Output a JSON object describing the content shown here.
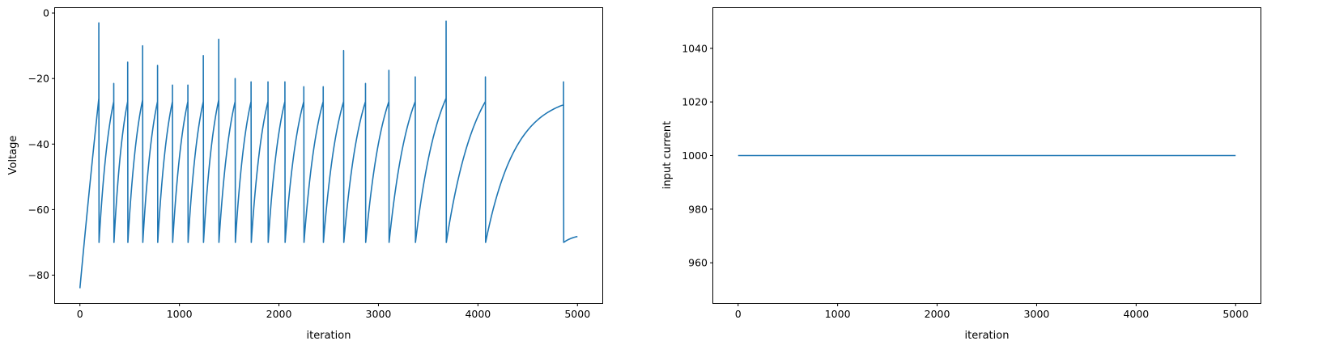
{
  "colors": {
    "series": "#1f77b4",
    "axes": "#000000",
    "background": "#ffffff"
  },
  "chart_data": [
    {
      "type": "line",
      "title": "",
      "xlabel": "iteration",
      "ylabel": "Voltage",
      "xlim": [
        -250,
        5250
      ],
      "ylim": [
        -88.5,
        1.5
      ],
      "xticks": [
        0,
        1000,
        2000,
        3000,
        4000,
        5000
      ],
      "yticks": [
        -80,
        -60,
        -40,
        -20,
        0
      ],
      "grid": false,
      "reset_voltage": -70,
      "start": {
        "x": 0,
        "y": -84
      },
      "spikes": [
        {
          "x": 190,
          "peak": -3,
          "threshold": -26
        },
        {
          "x": 340,
          "peak": -21.5,
          "threshold": -27
        },
        {
          "x": 480,
          "peak": -15,
          "threshold": -27
        },
        {
          "x": 630,
          "peak": -10,
          "threshold": -26.5
        },
        {
          "x": 780,
          "peak": -16,
          "threshold": -27
        },
        {
          "x": 930,
          "peak": -22,
          "threshold": -27
        },
        {
          "x": 1085,
          "peak": -22,
          "threshold": -27
        },
        {
          "x": 1240,
          "peak": -13,
          "threshold": -27
        },
        {
          "x": 1395,
          "peak": -8,
          "threshold": -26.5
        },
        {
          "x": 1560,
          "peak": -20,
          "threshold": -27
        },
        {
          "x": 1720,
          "peak": -21,
          "threshold": -27
        },
        {
          "x": 1890,
          "peak": -21,
          "threshold": -27
        },
        {
          "x": 2060,
          "peak": -21,
          "threshold": -27
        },
        {
          "x": 2250,
          "peak": -22.5,
          "threshold": -27
        },
        {
          "x": 2445,
          "peak": -22.5,
          "threshold": -27
        },
        {
          "x": 2650,
          "peak": -11.5,
          "threshold": -27
        },
        {
          "x": 2870,
          "peak": -21.5,
          "threshold": -27
        },
        {
          "x": 3105,
          "peak": -17.5,
          "threshold": -27
        },
        {
          "x": 3370,
          "peak": -19.5,
          "threshold": -27
        },
        {
          "x": 3680,
          "peak": -2.5,
          "threshold": -26
        },
        {
          "x": 4075,
          "peak": -19.5,
          "threshold": -27
        },
        {
          "x": 4860,
          "peak": -21,
          "threshold": -28
        }
      ],
      "end": {
        "x": 5000,
        "y": -68.2
      }
    },
    {
      "type": "line",
      "title": "",
      "xlabel": "iteration",
      "ylabel": "input current",
      "xlim": [
        -250,
        5250
      ],
      "ylim": [
        945,
        1055
      ],
      "xticks": [
        0,
        1000,
        2000,
        3000,
        4000,
        5000
      ],
      "yticks": [
        960,
        980,
        1000,
        1020,
        1040
      ],
      "grid": false,
      "x": [
        0,
        5000
      ],
      "y": [
        1000,
        1000
      ]
    }
  ]
}
